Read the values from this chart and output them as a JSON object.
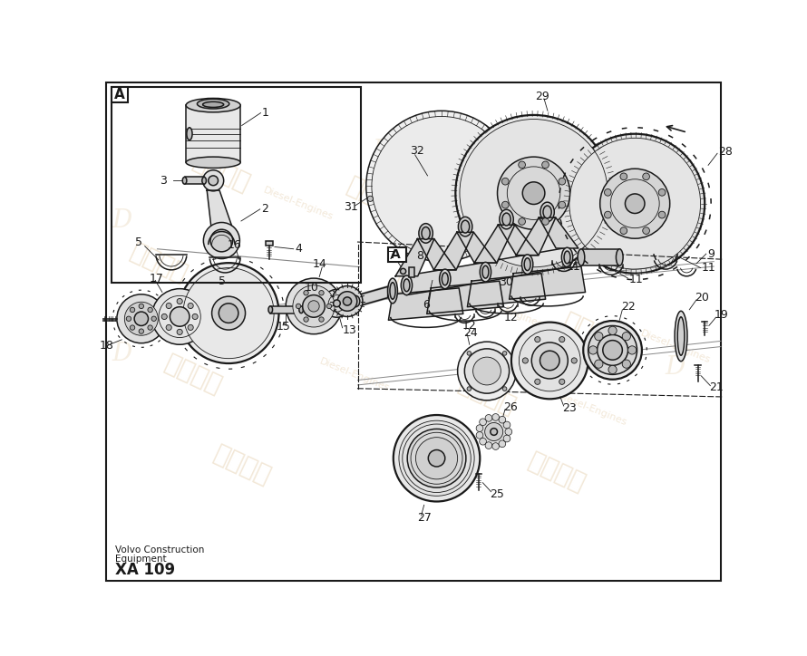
{
  "bg_color": "#ffffff",
  "line_color": "#1a1a1a",
  "footer_text1": "Volvo Construction",
  "footer_text2": "Equipment",
  "footer_text3": "XA 109",
  "wm_color": "#e8d5b8",
  "wm_alpha": 0.55
}
